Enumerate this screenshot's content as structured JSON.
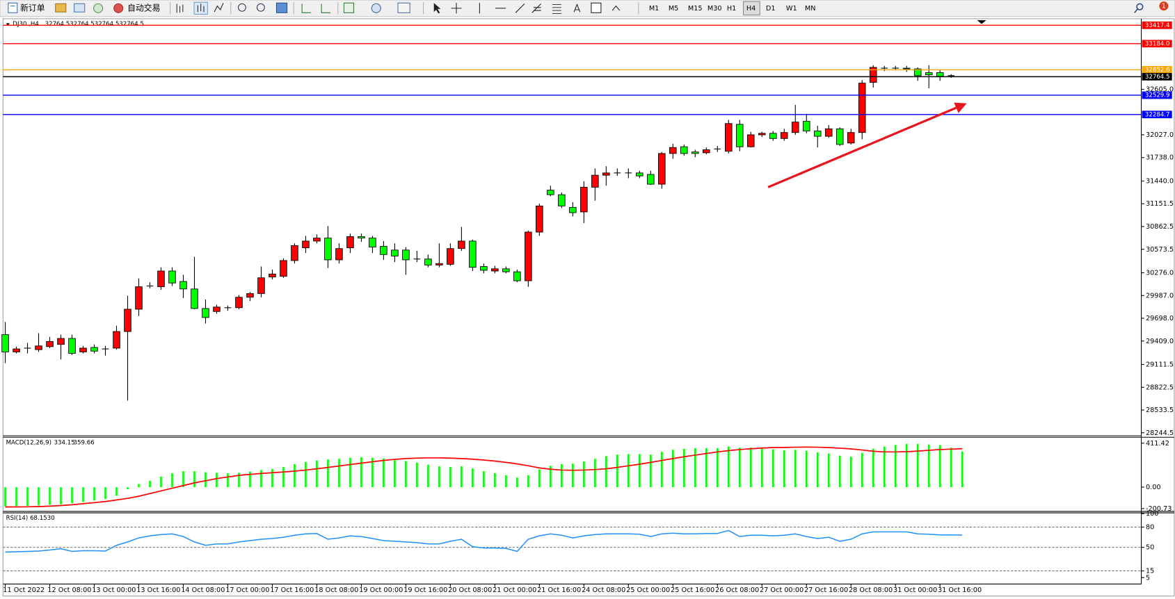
{
  "toolbar": {
    "new_order": "新订单",
    "auto_trading": "自动交易",
    "timeframes": [
      "M1",
      "M5",
      "M15",
      "M30",
      "H1",
      "H4",
      "D1",
      "W1",
      "MN"
    ],
    "active_timeframe": "H4",
    "notification_count": 1
  },
  "chart_data": [
    {
      "type": "candlestick",
      "title": "DJ30.,H4",
      "categories": [
        "11 Oct 2022",
        null,
        null,
        null,
        "12 Oct 08:00",
        null,
        null,
        null,
        "13 Oct 00:00",
        null,
        null,
        null,
        "13 Oct 16:00",
        null,
        null,
        null,
        "14 Oct 08:00",
        null,
        null,
        null,
        "17 Oct 00:00",
        null,
        null,
        null,
        "17 Oct 16:00",
        null,
        null,
        null,
        "18 Oct 08:00",
        null,
        null,
        null,
        "19 Oct 00:00",
        null,
        null,
        null,
        "19 Oct 16:00",
        null,
        null,
        null,
        "20 Oct 08:00",
        null,
        null,
        null,
        "21 Oct 00:00",
        null,
        null,
        null,
        "21 Oct 16:00",
        null,
        null,
        null,
        "24 Oct 08:00",
        null,
        null,
        null,
        "25 Oct 00:00",
        null,
        null,
        null,
        "25 Oct 16:00",
        null,
        null,
        null,
        "26 Oct 08:00",
        null,
        null,
        null,
        "27 Oct 00:00",
        null,
        null,
        null,
        "27 Oct 16:00",
        null,
        null,
        null,
        "28 Oct 08:00",
        null,
        null,
        null,
        "31 Oct 00:00",
        null,
        null,
        null,
        "31 Oct 16:00",
        null,
        null
      ],
      "open": [
        29490,
        29271,
        29319,
        29300,
        29338,
        29366,
        29442,
        29271,
        29328,
        29309,
        29319,
        29530,
        29813,
        30108,
        30098,
        30298,
        30165,
        30070,
        29822,
        29784,
        29832,
        29832,
        29965,
        30012,
        30222,
        30231,
        30431,
        30592,
        30678,
        30716,
        30440,
        30592,
        30735,
        30716,
        30611,
        30564,
        30564,
        30450,
        30450,
        30374,
        30383,
        30583,
        30678,
        30355,
        30298,
        30326,
        30288,
        30174,
        30792,
        31324,
        31267,
        31105,
        31048,
        31362,
        31514,
        31543,
        31543,
        31543,
        31524,
        31400,
        31790,
        31875,
        31809,
        31799,
        31847,
        31818,
        32160,
        31875,
        32027,
        32046,
        31980,
        32056,
        32198,
        32075,
        32008,
        32103,
        31923,
        32056,
        32693,
        32873,
        32873,
        32873,
        32864,
        32816,
        32816,
        32778,
        32764.5
      ],
      "high": [
        29651,
        29338,
        29385,
        29509,
        29461,
        29490,
        29490,
        29347,
        29366,
        29347,
        29604,
        29984,
        30203,
        30155,
        30345,
        30345,
        30250,
        30478,
        29936,
        29870,
        29860,
        29993,
        30031,
        30355,
        30317,
        30459,
        30649,
        30744,
        30763,
        30868,
        30649,
        30773,
        30773,
        30744,
        30678,
        30649,
        30602,
        30554,
        30507,
        30649,
        30649,
        30858,
        30697,
        30393,
        30364,
        30355,
        30317,
        30811,
        31153,
        31381,
        31295,
        31172,
        31438,
        31600,
        31628,
        31600,
        31600,
        31571,
        31571,
        31809,
        31913,
        31904,
        31837,
        31866,
        31885,
        32217,
        32217,
        32065,
        32065,
        32075,
        32103,
        32407,
        32293,
        32141,
        32151,
        32122,
        32103,
        32721,
        32911,
        32902,
        32902,
        32902,
        32883,
        32911,
        32854,
        32797,
        32764.5
      ],
      "low": [
        29129,
        29252,
        29252,
        29271,
        29319,
        29176,
        29233,
        29252,
        29252,
        29224,
        29300,
        28653,
        29727,
        30079,
        30060,
        30108,
        29955,
        29813,
        29632,
        29756,
        29794,
        29813,
        29917,
        29965,
        30193,
        30212,
        30393,
        30526,
        30649,
        30336,
        30393,
        30526,
        30668,
        30526,
        30440,
        30412,
        30250,
        30412,
        30345,
        30345,
        30364,
        30554,
        30298,
        30269,
        30269,
        30269,
        30155,
        30098,
        30744,
        31248,
        31096,
        30991,
        30907,
        31191,
        31381,
        31505,
        31476,
        31476,
        31390,
        31343,
        31723,
        31761,
        31742,
        31780,
        31809,
        31790,
        31818,
        31866,
        31999,
        31951,
        31951,
        32027,
        32046,
        31866,
        31989,
        31885,
        31904,
        31970,
        32626,
        32835,
        32845,
        32826,
        32712,
        32617,
        32712,
        32750,
        32764.5
      ],
      "close": [
        29271,
        29309,
        29319,
        29347,
        29404,
        29442,
        29252,
        29319,
        29281,
        29309,
        29530,
        29813,
        30098,
        30108,
        30298,
        30146,
        30070,
        29822,
        29708,
        29841,
        29832,
        29965,
        30012,
        30212,
        30260,
        30431,
        30621,
        30678,
        30716,
        30440,
        30583,
        30735,
        30716,
        30602,
        30507,
        30488,
        30440,
        30450,
        30374,
        30393,
        30583,
        30678,
        30345,
        30307,
        30326,
        30288,
        30174,
        30792,
        31124,
        31267,
        31124,
        31039,
        31362,
        31514,
        31543,
        31543,
        31543,
        31505,
        31400,
        31790,
        31866,
        31790,
        31790,
        31837,
        31847,
        32170,
        31875,
        32027,
        32046,
        31980,
        32056,
        32189,
        32075,
        32008,
        32103,
        31904,
        32056,
        32683,
        32883,
        32873,
        32873,
        32864,
        32778,
        32788,
        32769,
        32778,
        32764.5
      ],
      "up_color": "#ff0000",
      "down_color": "#00ff00",
      "ylim": [
        28216,
        33453
      ],
      "yticks": [
        {
          "value": 32605,
          "label": "32605.0"
        },
        {
          "value": 32027,
          "label": "32027.0"
        },
        {
          "value": 31738,
          "label": "31738.0"
        },
        {
          "value": 31440,
          "label": "31440.0"
        },
        31151.5,
        30862.5,
        30573.5,
        {
          "value": 30276,
          "label": "30276.0"
        },
        {
          "value": 29987,
          "label": "29987.0"
        },
        {
          "value": 29698,
          "label": "29698.0"
        },
        {
          "value": 29409,
          "label": "29409.0"
        },
        29111.5,
        28822.5,
        28533.5,
        28244.5
      ],
      "hlines": [
        {
          "value": 33417.4,
          "color": "#ff0000"
        },
        {
          "value": 33184,
          "label": "33184.0",
          "color": "#ff0000"
        },
        {
          "value": 32852.6,
          "color": "#ffa500"
        },
        {
          "value": 32764.5,
          "color": "#000000"
        },
        {
          "value": 32529.9,
          "color": "#0000ff"
        },
        {
          "value": 32284.7,
          "color": "#0000ff"
        }
      ]
    },
    {
      "type": "macd",
      "title": "MACD(12,26,9)",
      "histogram": {
        "color": "#00ff00",
        "values": [
          -180,
          -178,
          -175,
          -170,
          -165,
          -160,
          -150,
          -140,
          -125,
          -110,
          -80,
          -20,
          30,
          60,
          100,
          130,
          150,
          150,
          140,
          135,
          130,
          135,
          145,
          160,
          170,
          190,
          215,
          235,
          250,
          260,
          265,
          275,
          280,
          275,
          270,
          260,
          245,
          230,
          210,
          195,
          190,
          195,
          175,
          150,
          130,
          110,
          90,
          110,
          165,
          200,
          215,
          220,
          240,
          265,
          290,
          305,
          310,
          310,
          305,
          330,
          350,
          360,
          365,
          365,
          365,
          380,
          370,
          370,
          365,
          355,
          345,
          350,
          340,
          325,
          315,
          295,
          285,
          320,
          360,
          380,
          395,
          405,
          405,
          400,
          395,
          370,
          334.15
        ]
      },
      "signal": {
        "color": "#ff0000",
        "values": [
          -185,
          -185,
          -184,
          -182,
          -178,
          -172,
          -165,
          -155,
          -145,
          -135,
          -120,
          -105,
          -85,
          -60,
          -35,
          -10,
          15,
          40,
          60,
          80,
          95,
          110,
          120,
          128,
          135,
          142,
          150,
          160,
          172,
          185,
          198,
          212,
          225,
          238,
          250,
          260,
          268,
          272,
          274,
          274,
          272,
          268,
          262,
          254,
          244,
          232,
          218,
          200,
          180,
          168,
          160,
          158,
          160,
          165,
          172,
          185,
          200,
          215,
          232,
          250,
          268,
          285,
          300,
          315,
          330,
          342,
          352,
          360,
          366,
          370,
          372,
          374,
          375,
          374,
          370,
          365,
          358,
          348,
          336,
          330,
          330,
          332,
          338,
          345,
          352,
          356,
          359.66
        ]
      },
      "ylim": [
        -213,
        453
      ],
      "yticks": [
        411.42,
        {
          "value": 0,
          "label": "0.00"
        },
        -200.73
      ]
    },
    {
      "type": "line",
      "title": "RSI(14)",
      "color": "#1e90ff",
      "value_label": "68.1530",
      "values": [
        43,
        43.5,
        44,
        44.5,
        46,
        48,
        44,
        45,
        45,
        44.5,
        53,
        58,
        64,
        67,
        69,
        70,
        66,
        58,
        53,
        55,
        55,
        58,
        60,
        62,
        63,
        65,
        68,
        70,
        70.5,
        62,
        64,
        67,
        66,
        63,
        60,
        59,
        58,
        57,
        55,
        55,
        59,
        62,
        51,
        49,
        49,
        48.5,
        44,
        62,
        67,
        70,
        68,
        64,
        67,
        69,
        70,
        70,
        70,
        69.5,
        66,
        70,
        71,
        70,
        70,
        70.5,
        70.5,
        75,
        66,
        68,
        68,
        67,
        68,
        70,
        66,
        63,
        65,
        59,
        62,
        70,
        73,
        73,
        73,
        73,
        70,
        69.5,
        68.5,
        68.5,
        68.153
      ],
      "ylim": [
        0,
        100
      ],
      "yticks": [
        100,
        80,
        50,
        15,
        5
      ],
      "levels": [
        80,
        50,
        15
      ]
    }
  ]
}
